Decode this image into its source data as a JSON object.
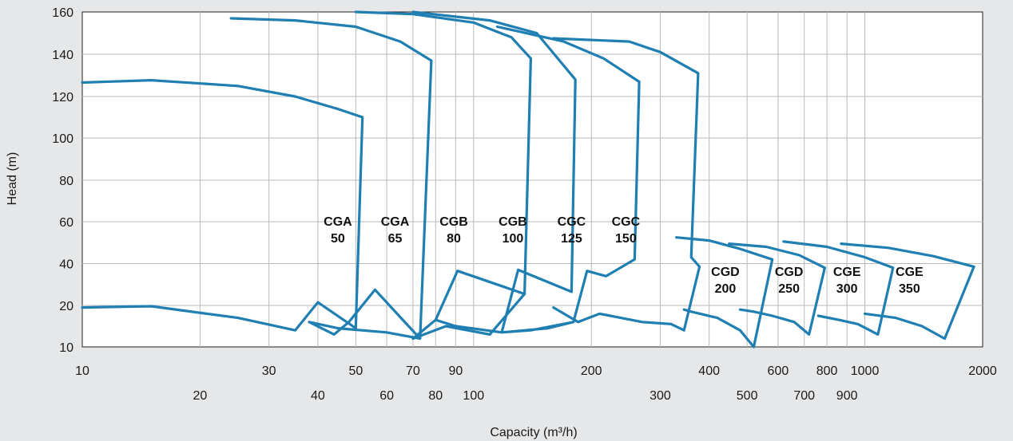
{
  "chart_data": {
    "type": "line",
    "title": "",
    "xlabel": "Capacity (m³/h)",
    "ylabel": "Head (m)",
    "x_scale": "log",
    "xlim": [
      10,
      2000
    ],
    "ylim": [
      10,
      160
    ],
    "grid": true,
    "line_color": "#1f7fb2",
    "x_ticks_upper": [
      10,
      30,
      50,
      70,
      90,
      200,
      400,
      600,
      800,
      1000,
      2000
    ],
    "x_ticks_lower": [
      20,
      40,
      60,
      80,
      100,
      300,
      500,
      700,
      900
    ],
    "x_tick_labels_upper": [
      "10",
      "30",
      "50",
      "70",
      "90",
      "200",
      "400",
      "600",
      "800",
      "1000",
      "2000"
    ],
    "x_tick_labels_lower": [
      "20",
      "40",
      "60",
      "80",
      "100",
      "300",
      "500",
      "700",
      "900"
    ],
    "y_ticks": [
      10,
      20,
      40,
      60,
      80,
      100,
      120,
      140,
      160
    ],
    "y_tick_labels": [
      "10",
      "20",
      "40",
      "60",
      "80",
      "100",
      "120",
      "140",
      "160"
    ],
    "series": [
      {
        "name": "CGA 50",
        "label_lines": [
          "CGA",
          "50"
        ],
        "label_at": [
          45,
          57
        ],
        "points": [
          [
            10,
            126.6
          ],
          [
            15,
            127.7
          ],
          [
            25,
            125
          ],
          [
            35,
            120
          ],
          [
            45,
            114
          ],
          [
            52,
            110
          ],
          [
            50,
            14.5
          ],
          [
            40,
            21.5
          ],
          [
            35,
            14
          ],
          [
            25,
            17
          ],
          [
            15,
            19.8
          ],
          [
            10,
            19.5
          ]
        ]
      },
      {
        "name": "CGA 65",
        "label_lines": [
          "CGA",
          "65"
        ],
        "label_at": [
          63,
          57
        ],
        "points": [
          [
            24,
            157
          ],
          [
            35,
            156
          ],
          [
            50,
            153
          ],
          [
            65,
            146
          ],
          [
            78,
            137
          ],
          [
            73,
            12
          ],
          [
            56,
            27.5
          ],
          [
            48,
            16
          ],
          [
            44,
            13
          ],
          [
            38,
            16
          ],
          [
            45,
            14.5
          ],
          [
            60,
            13.5
          ],
          [
            73,
            12
          ]
        ]
      },
      {
        "name": "CGB 80",
        "label_lines": [
          "CGB",
          "80"
        ],
        "label_at": [
          89,
          57
        ],
        "points": [
          [
            50,
            160
          ],
          [
            70,
            159
          ],
          [
            100,
            155
          ],
          [
            125,
            148
          ],
          [
            140,
            138
          ],
          [
            135,
            25.5
          ],
          [
            91,
            36.5
          ],
          [
            80,
            16.5
          ],
          [
            70,
            12
          ],
          [
            85,
            15
          ],
          [
            110,
            13
          ],
          [
            135,
            25.5
          ]
        ]
      },
      {
        "name": "CGB 100",
        "label_lines": [
          "CGB",
          "100"
        ],
        "label_at": [
          126,
          57
        ],
        "points": [
          [
            70,
            160
          ],
          [
            110,
            156
          ],
          [
            145,
            150
          ],
          [
            182,
            128
          ],
          [
            178,
            26.5
          ],
          [
            130,
            37
          ],
          [
            118,
            13.5
          ],
          [
            90,
            15
          ],
          [
            80,
            16.5
          ]
        ]
      },
      {
        "name": "CGC 125",
        "label_lines": [
          "CGC",
          "125"
        ],
        "label_at": [
          178,
          57
        ],
        "points": [
          [
            115,
            153
          ],
          [
            170,
            146
          ],
          [
            215,
            138
          ],
          [
            265,
            127
          ],
          [
            258,
            42
          ],
          [
            218,
            34
          ],
          [
            195,
            36.5
          ],
          [
            180,
            16
          ],
          [
            140,
            14
          ],
          [
            118,
            13.5
          ],
          [
            155,
            14.5
          ],
          [
            180,
            16
          ]
        ]
      },
      {
        "name": "CGC 150",
        "label_lines": [
          "CGC",
          "150"
        ],
        "label_at": [
          245,
          57
        ],
        "points": [
          [
            160,
            147.5
          ],
          [
            250,
            146
          ],
          [
            300,
            141
          ],
          [
            375,
            131
          ],
          [
            360,
            43
          ],
          [
            378,
            38.5
          ],
          [
            345,
            14
          ],
          [
            320,
            15.5
          ],
          [
            270,
            16
          ],
          [
            210,
            18
          ],
          [
            185,
            16
          ],
          [
            160,
            19.5
          ]
        ]
      },
      {
        "name": "CGD 200",
        "label_lines": [
          "CGD",
          "200"
        ],
        "label_at": [
          440,
          33
        ],
        "points": [
          [
            330,
            52.5
          ],
          [
            400,
            51
          ],
          [
            480,
            47
          ],
          [
            580,
            42
          ],
          [
            520,
            10
          ],
          [
            480,
            14
          ],
          [
            420,
            17
          ],
          [
            360,
            18.5
          ],
          [
            345,
            19
          ]
        ]
      },
      {
        "name": "CGD 250",
        "label_lines": [
          "CGD",
          "250"
        ],
        "label_at": [
          640,
          33
        ],
        "points": [
          [
            450,
            49.5
          ],
          [
            560,
            48
          ],
          [
            680,
            44
          ],
          [
            790,
            38
          ],
          [
            720,
            13
          ],
          [
            660,
            16
          ],
          [
            580,
            17.5
          ],
          [
            520,
            18.5
          ],
          [
            480,
            19
          ]
        ]
      },
      {
        "name": "CGE 300",
        "label_lines": [
          "CGE",
          "300"
        ],
        "label_at": [
          900,
          33
        ],
        "points": [
          [
            620,
            50.5
          ],
          [
            800,
            48
          ],
          [
            1000,
            43
          ],
          [
            1180,
            38
          ],
          [
            1080,
            13
          ],
          [
            960,
            15.5
          ],
          [
            860,
            16.5
          ],
          [
            760,
            17.5
          ]
        ]
      },
      {
        "name": "CGE 350",
        "label_lines": [
          "CGE",
          "350"
        ],
        "label_at": [
          1300,
          33
        ],
        "points": [
          [
            870,
            49.5
          ],
          [
            1150,
            47.5
          ],
          [
            1500,
            43.5
          ],
          [
            1900,
            38.5
          ],
          [
            1600,
            12
          ],
          [
            1400,
            15
          ],
          [
            1200,
            17
          ],
          [
            1000,
            18
          ]
        ]
      }
    ]
  }
}
